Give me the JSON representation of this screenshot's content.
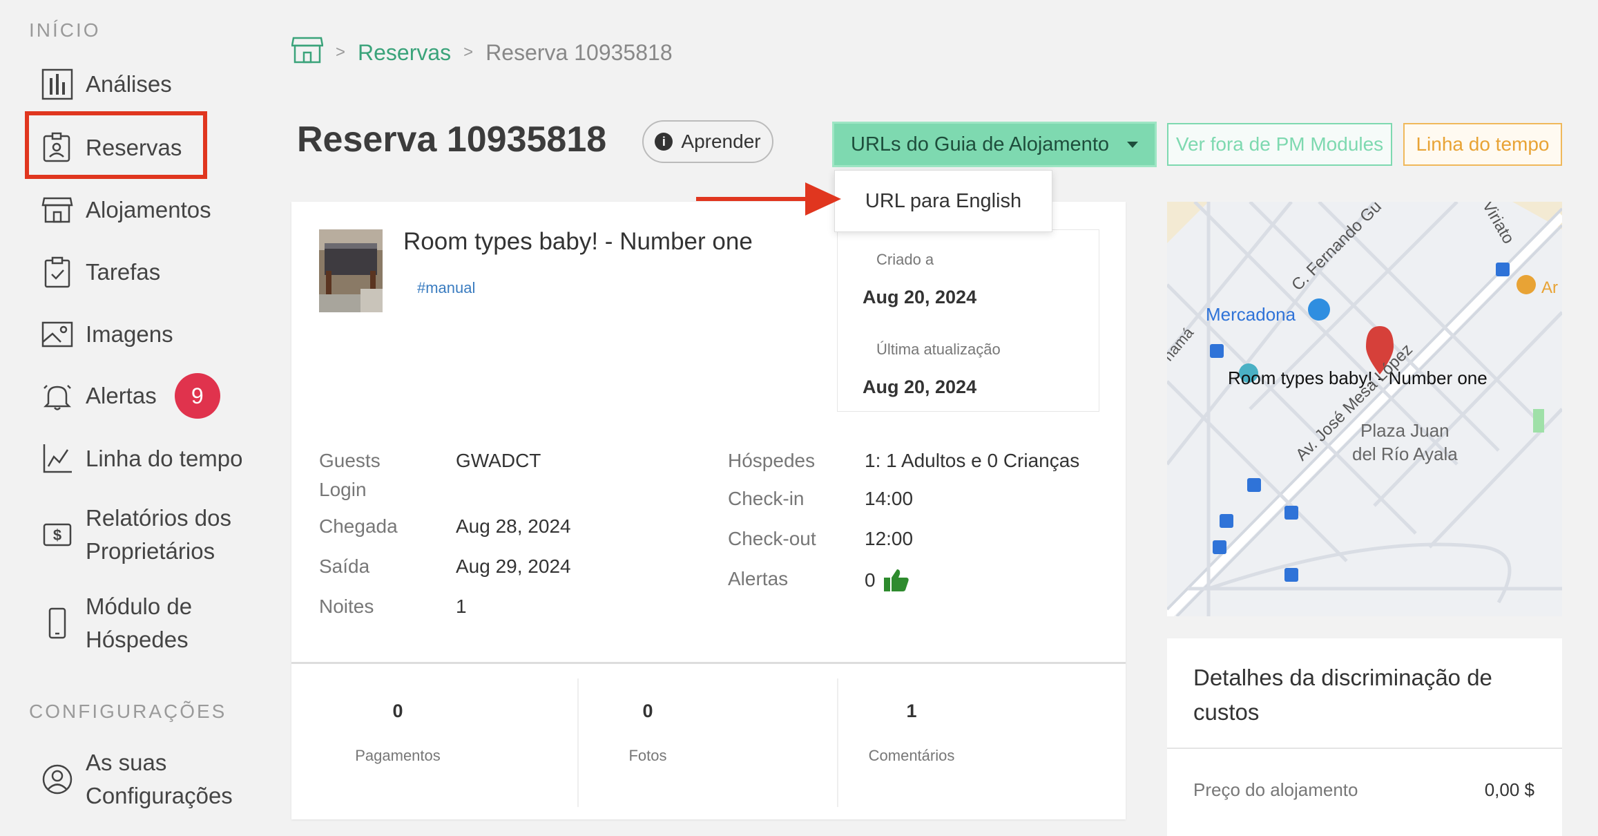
{
  "sidebar": {
    "section_start": "INÍCIO",
    "section_config": "CONFIGURAÇÕES",
    "items": [
      {
        "label": "Análises"
      },
      {
        "label": "Reservas"
      },
      {
        "label": "Alojamentos"
      },
      {
        "label": "Tarefas"
      },
      {
        "label": "Imagens"
      },
      {
        "label": "Alertas",
        "badge": "9"
      },
      {
        "label": "Linha do tempo"
      },
      {
        "label": "Relatórios dos Proprietários"
      },
      {
        "label": "Módulo de Hóspedes"
      },
      {
        "label": "As suas Configurações"
      }
    ]
  },
  "breadcrumb": {
    "link": "Reservas",
    "current": "Reserva 10935818"
  },
  "header": {
    "title": "Reserva 10935818",
    "learn_label": "Aprender",
    "guide_urls_label": "URLs do Guia de Alojamento",
    "view_outside_label": "Ver fora de PM Modules",
    "timeline_label": "Linha do tempo"
  },
  "dropdown": {
    "items": [
      "URL para English"
    ]
  },
  "booking": {
    "room_title": "Room types baby! - Number one",
    "tag": "#manual",
    "created_label": "Criado a",
    "created_value": "Aug 20, 2024",
    "updated_label": "Última atualização",
    "updated_value": "Aug 20, 2024",
    "left": [
      {
        "label": "Guests Login",
        "value": "GWADCT"
      },
      {
        "label": "Chegada",
        "value": "Aug 28, 2024"
      },
      {
        "label": "Saída",
        "value": "Aug 29, 2024"
      },
      {
        "label": "Noites",
        "value": "1"
      }
    ],
    "right": [
      {
        "label": "Hóspedes",
        "value": "1: 1 Adultos e 0 Crianças"
      },
      {
        "label": "Check-in",
        "value": "14:00"
      },
      {
        "label": "Check-out",
        "value": "12:00"
      },
      {
        "label": "Alertas",
        "value": "0"
      }
    ],
    "stats": [
      {
        "num": "0",
        "label": "Pagamentos"
      },
      {
        "num": "0",
        "label": "Fotos"
      },
      {
        "num": "1",
        "label": "Comentários"
      }
    ]
  },
  "map": {
    "labels": {
      "mercadona": "Mercadona",
      "pin": "Room types baby! - Number one",
      "street1": "C. Fernando Gu",
      "street2": "Av. José Mesa López",
      "street3": "Viriato",
      "plaza1": "Plaza Juan",
      "plaza2": "del Río Ayala",
      "edge1": "namá",
      "edge2": "Ar"
    }
  },
  "costs": {
    "title": "Detalhes da discriminação de custos",
    "price_label": "Preço do alojamento",
    "price_value": "0,00 $"
  },
  "colors": {
    "accent": "#3aa37a",
    "guide_button": "#7ed9b0",
    "timeline_button": "#e8a335",
    "alert_badge": "#e0334d",
    "highlight": "#e0361f"
  }
}
